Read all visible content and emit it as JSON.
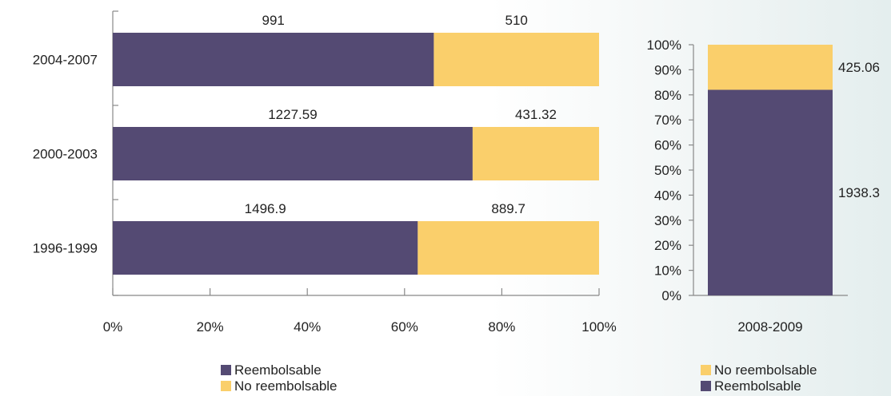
{
  "chart_data": [
    {
      "type": "bar",
      "orientation": "horizontal",
      "stacked": "percent",
      "categories": [
        "2004-2007",
        "2000-2003",
        "1996-1999"
      ],
      "series": [
        {
          "name": "Reembolsable",
          "values": [
            991,
            1227.59,
            1496.9
          ],
          "color": "#544a73"
        },
        {
          "name": "No reembolsable",
          "values": [
            510,
            431.32,
            889.7
          ],
          "color": "#facf6b"
        }
      ],
      "xlim": [
        0,
        100
      ],
      "xticks": [
        "0%",
        "20%",
        "40%",
        "60%",
        "80%",
        "100%"
      ],
      "legend": [
        "Reembolsable",
        "No reembolsable"
      ],
      "legend_position": "bottom"
    },
    {
      "type": "bar",
      "orientation": "vertical",
      "stacked": "percent",
      "categories": [
        "2008-2009"
      ],
      "series": [
        {
          "name": "Reembolsable",
          "values": [
            1938.3
          ],
          "color": "#544a73"
        },
        {
          "name": "No reembolsable",
          "values": [
            425.06
          ],
          "color": "#facf6b"
        }
      ],
      "ylim": [
        0,
        100
      ],
      "yticks": [
        "0%",
        "10%",
        "20%",
        "30%",
        "40%",
        "50%",
        "60%",
        "70%",
        "80%",
        "90%",
        "100%"
      ],
      "legend": [
        "No reembolsable",
        "Reembolsable"
      ],
      "legend_position": "bottom"
    }
  ]
}
